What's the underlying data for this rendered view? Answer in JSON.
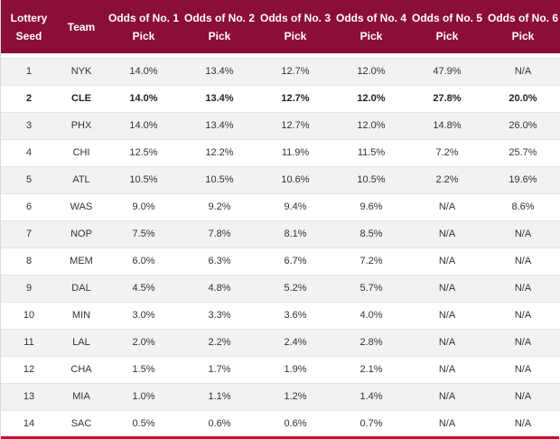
{
  "headers": {
    "seed": "Lottery Seed",
    "team": "Team",
    "pick1": "Odds of No. 1 Pick",
    "pick2": "Odds of No. 2 Pick",
    "pick3": "Odds of No. 3 Pick",
    "pick4": "Odds of No. 4 Pick",
    "pick5": "Odds of No. 5 Pick",
    "pick6": "Odds of No. 6 Pick"
  },
  "rows": [
    {
      "seed": "1",
      "team": "NYK",
      "pick1": "14.0%",
      "pick2": "13.4%",
      "pick3": "12.7%",
      "pick4": "12.0%",
      "pick5": "47.9%",
      "pick6": "N/A"
    },
    {
      "seed": "2",
      "team": "CLE",
      "pick1": "14.0%",
      "pick2": "13.4%",
      "pick3": "12.7%",
      "pick4": "12.0%",
      "pick5": "27.8%",
      "pick6": "20.0%"
    },
    {
      "seed": "3",
      "team": "PHX",
      "pick1": "14.0%",
      "pick2": "13.4%",
      "pick3": "12.7%",
      "pick4": "12.0%",
      "pick5": "14.8%",
      "pick6": "26.0%"
    },
    {
      "seed": "4",
      "team": "CHI",
      "pick1": "12.5%",
      "pick2": "12.2%",
      "pick3": "11.9%",
      "pick4": "11.5%",
      "pick5": "7.2%",
      "pick6": "25.7%"
    },
    {
      "seed": "5",
      "team": "ATL",
      "pick1": "10.5%",
      "pick2": "10.5%",
      "pick3": "10.6%",
      "pick4": "10.5%",
      "pick5": "2.2%",
      "pick6": "19.6%"
    },
    {
      "seed": "6",
      "team": "WAS",
      "pick1": "9.0%",
      "pick2": "9.2%",
      "pick3": "9.4%",
      "pick4": "9.6%",
      "pick5": "N/A",
      "pick6": "8.6%"
    },
    {
      "seed": "7",
      "team": "NOP",
      "pick1": "7.5%",
      "pick2": "7.8%",
      "pick3": "8.1%",
      "pick4": "8.5%",
      "pick5": "N/A",
      "pick6": "N/A"
    },
    {
      "seed": "8",
      "team": "MEM",
      "pick1": "6.0%",
      "pick2": "6.3%",
      "pick3": "6.7%",
      "pick4": "7.2%",
      "pick5": "N/A",
      "pick6": "N/A"
    },
    {
      "seed": "9",
      "team": "DAL",
      "pick1": "4.5%",
      "pick2": "4.8%",
      "pick3": "5.2%",
      "pick4": "5.7%",
      "pick5": "N/A",
      "pick6": "N/A"
    },
    {
      "seed": "10",
      "team": "MIN",
      "pick1": "3.0%",
      "pick2": "3.3%",
      "pick3": "3.6%",
      "pick4": "4.0%",
      "pick5": "N/A",
      "pick6": "N/A"
    },
    {
      "seed": "11",
      "team": "LAL",
      "pick1": "2.0%",
      "pick2": "2.2%",
      "pick3": "2.4%",
      "pick4": "2.8%",
      "pick5": "N/A",
      "pick6": "N/A"
    },
    {
      "seed": "12",
      "team": "CHA",
      "pick1": "1.5%",
      "pick2": "1.7%",
      "pick3": "1.9%",
      "pick4": "2.1%",
      "pick5": "N/A",
      "pick6": "N/A"
    },
    {
      "seed": "13",
      "team": "MIA",
      "pick1": "1.0%",
      "pick2": "1.1%",
      "pick3": "1.2%",
      "pick4": "1.4%",
      "pick5": "N/A",
      "pick6": "N/A"
    },
    {
      "seed": "14",
      "team": "SAC",
      "pick1": "0.5%",
      "pick2": "0.6%",
      "pick3": "0.6%",
      "pick4": "0.7%",
      "pick5": "N/A",
      "pick6": "N/A"
    }
  ],
  "highlight_row": 1,
  "colors": {
    "header_bg": "#8b0d3a",
    "header_text": "#ffffff",
    "bottom_bar": "#c8102e"
  }
}
